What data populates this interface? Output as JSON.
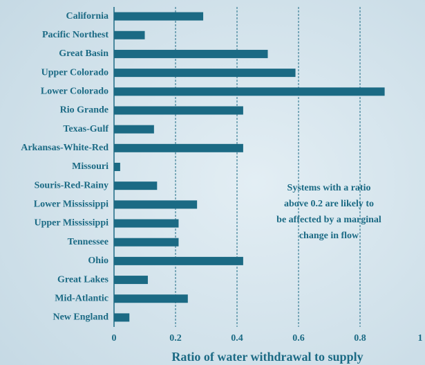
{
  "chart_data": {
    "type": "hbar",
    "xlabel": "Ratio of water withdrawal to supply",
    "categories": [
      "California",
      "Pacific Northest",
      "Great Basin",
      "Upper Colorado",
      "Lower Colorado",
      "Rio Grande",
      "Texas-Gulf",
      "Arkansas-White-Red",
      "Missouri",
      "Souris-Red-Rainy",
      "Lower Mississippi",
      "Upper Mississippi",
      "Tennessee",
      "Ohio",
      "Great Lakes",
      "Mid-Atlantic",
      "New England"
    ],
    "values": [
      0.29,
      0.1,
      0.5,
      0.59,
      0.88,
      0.42,
      0.13,
      0.42,
      0.02,
      0.14,
      0.27,
      0.21,
      0.21,
      0.42,
      0.11,
      0.24,
      0.05
    ],
    "color": "#1b6a84",
    "xlim": [
      0,
      1
    ],
    "xticks": [
      0,
      0.2,
      0.4,
      0.6,
      0.8,
      1
    ],
    "grid": true,
    "annotation": [
      "Systems with a ratio",
      "above 0.2 are likely to",
      "be affected by a marginal",
      "change in flow"
    ]
  }
}
